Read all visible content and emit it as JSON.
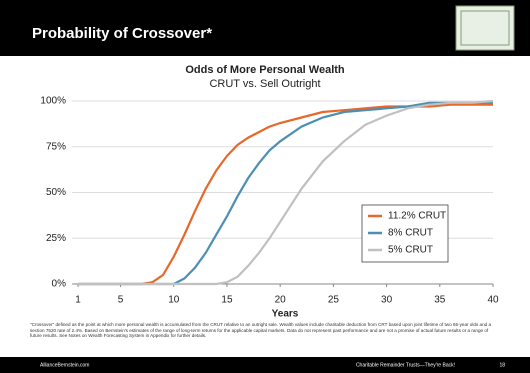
{
  "header": {
    "title": "Probability of Crossover*"
  },
  "chart_data": {
    "type": "line",
    "title": "Odds of More Personal Wealth",
    "subtitle": "CRUT vs. Sell Outright",
    "x_label": "Years",
    "x": [
      1,
      5,
      7,
      8,
      9,
      10,
      11,
      12,
      13,
      14,
      15,
      16,
      17,
      18,
      19,
      20,
      22,
      24,
      26,
      28,
      30,
      32,
      34,
      36,
      38,
      40
    ],
    "series": [
      {
        "name": "11.2% CRUT",
        "color": "#e8672a",
        "values": [
          0,
          0,
          0,
          1,
          5,
          15,
          27,
          40,
          52,
          62,
          70,
          76,
          80,
          83,
          86,
          88,
          91,
          94,
          95,
          96,
          97,
          97,
          97,
          98,
          98,
          98
        ]
      },
      {
        "name": "8% CRUT",
        "color": "#4c8fb3",
        "values": [
          0,
          0,
          0,
          0,
          0,
          0,
          3,
          9,
          17,
          27,
          37,
          48,
          58,
          66,
          73,
          78,
          86,
          91,
          94,
          95,
          96,
          97,
          99,
          99,
          99,
          99
        ]
      },
      {
        "name": "5% CRUT",
        "color": "#c0c0c0",
        "values": [
          0,
          0,
          0,
          0,
          0,
          0,
          0,
          0,
          0,
          0,
          1,
          4,
          10,
          17,
          25,
          34,
          52,
          67,
          78,
          87,
          92,
          96,
          98,
          99,
          99,
          100
        ]
      }
    ],
    "xlim": [
      1,
      40
    ],
    "xticks": [
      1,
      5,
      10,
      15,
      20,
      25,
      30,
      35,
      40
    ],
    "ylim": [
      0,
      100
    ],
    "yticks": [
      {
        "value": 0,
        "label": "0%"
      },
      {
        "value": 25,
        "label": "25%"
      },
      {
        "value": 50,
        "label": "50%"
      },
      {
        "value": 75,
        "label": "75%"
      },
      {
        "value": 100,
        "label": "100%"
      }
    ],
    "grid": true
  },
  "footnote": "\"Crossover\" defined as the point at which more personal wealth is accumulated from the CRUT relative to an outright sale. Wealth values include charitable deduction from CRT based upon joint lifetime of two 65-year olds and a section 7520 rate of 2.4%. Based on Bernstein's estimates of the range of long-term returns for the applicable capital markets. Data do not represent past performance and are not a promise of actual future results or a range of future results. See Notes on Wealth Forecasting System in Appendix for further details.",
  "footer": {
    "website": "AllianceBernstein.com",
    "tagline": "Charitable Remainder Trusts—They're Back!",
    "page": "18"
  }
}
